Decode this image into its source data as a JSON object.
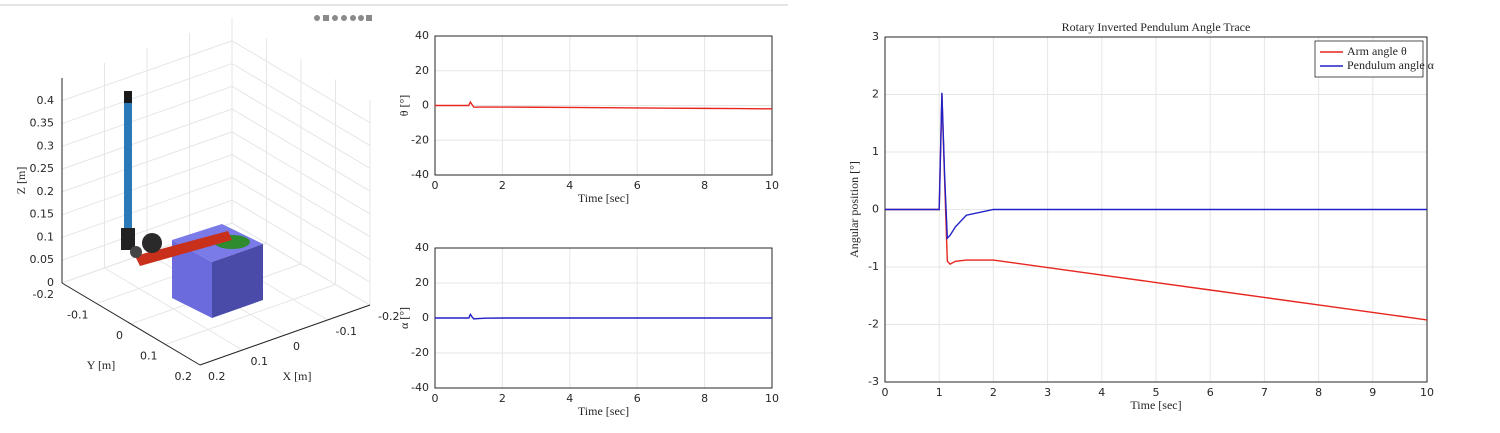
{
  "chart_data": [
    {
      "type": "3d",
      "xlabel": "X [m]",
      "ylabel": "Y [m]",
      "zlabel": "Z [m]",
      "xlim": [
        -0.2,
        0.2
      ],
      "xticks": [
        -0.2,
        -0.1,
        0,
        0.1,
        0.2
      ],
      "ylim": [
        -0.2,
        0.2
      ],
      "yticks": [
        -0.2,
        -0.1,
        0,
        0.1,
        0.2
      ],
      "zlim": [
        0,
        0.45
      ],
      "zticks": [
        0,
        0.05,
        0.1,
        0.15,
        0.2,
        0.25,
        0.3,
        0.35,
        0.4
      ],
      "grid": true
    },
    {
      "type": "line",
      "ylabel": "θ [°]",
      "xlabel": "Time [sec]",
      "x": [
        0,
        1.0,
        1.05,
        1.1,
        1.15,
        1.2,
        1.3,
        1.5,
        2,
        3,
        4,
        5,
        6,
        7,
        8,
        9,
        10
      ],
      "series": [
        {
          "color": "#e8251e",
          "values": [
            0,
            0,
            2.0,
            0.5,
            -0.9,
            -0.95,
            -0.9,
            -0.88,
            -0.88,
            -1.01,
            -1.14,
            -1.27,
            -1.4,
            -1.53,
            -1.66,
            -1.79,
            -1.92
          ]
        }
      ],
      "xlim": [
        0,
        10
      ],
      "xticks": [
        0,
        2,
        4,
        6,
        8,
        10
      ],
      "ylim": [
        -40,
        40
      ],
      "yticks": [
        -40,
        -20,
        0,
        20,
        40
      ],
      "grid": true
    },
    {
      "type": "line",
      "ylabel": "α [°]",
      "xlabel": "Time [sec]",
      "x": [
        0,
        1.0,
        1.05,
        1.1,
        1.15,
        1.2,
        1.3,
        1.5,
        2,
        3,
        4,
        5,
        6,
        7,
        8,
        9,
        10
      ],
      "series": [
        {
          "color": "#2121c8",
          "values": [
            0,
            0,
            2.03,
            0.6,
            -0.5,
            -0.45,
            -0.3,
            -0.1,
            0,
            0,
            0,
            0,
            0,
            0,
            0,
            0,
            0
          ]
        }
      ],
      "xlim": [
        0,
        10
      ],
      "xticks": [
        0,
        2,
        4,
        6,
        8,
        10
      ],
      "ylim": [
        -40,
        40
      ],
      "yticks": [
        -40,
        -20,
        0,
        20,
        40
      ],
      "grid": true
    },
    {
      "type": "line",
      "title": "Rotary Inverted Pendulum Angle Trace",
      "ylabel": "Angular position [°]",
      "xlabel": "Time [sec]",
      "x": [
        0,
        1.0,
        1.05,
        1.1,
        1.15,
        1.2,
        1.3,
        1.5,
        2,
        3,
        4,
        5,
        6,
        7,
        8,
        9,
        10
      ],
      "series": [
        {
          "name": "Arm angle θ",
          "color": "#e8251e",
          "values": [
            0,
            0,
            2.0,
            0.5,
            -0.9,
            -0.95,
            -0.9,
            -0.88,
            -0.88,
            -1.01,
            -1.14,
            -1.27,
            -1.4,
            -1.53,
            -1.66,
            -1.79,
            -1.92
          ]
        },
        {
          "name": "Pendulum angle α",
          "color": "#2121c8",
          "values": [
            0,
            0,
            2.03,
            0.6,
            -0.5,
            -0.45,
            -0.3,
            -0.1,
            0,
            0,
            0,
            0,
            0,
            0,
            0,
            0,
            0
          ]
        }
      ],
      "xlim": [
        0,
        10
      ],
      "xticks": [
        0,
        1,
        2,
        3,
        4,
        5,
        6,
        7,
        8,
        9,
        10
      ],
      "ylim": [
        -3,
        3
      ],
      "yticks": [
        -3,
        -2,
        -1,
        0,
        1,
        2,
        3
      ],
      "grid": true,
      "legend": "upper right"
    }
  ]
}
